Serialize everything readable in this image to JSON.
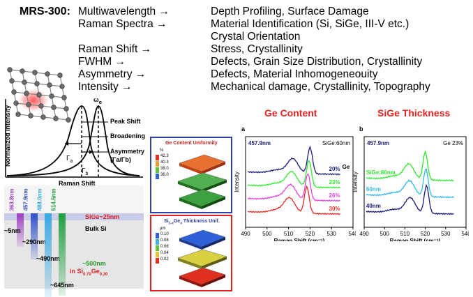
{
  "header": {
    "model": "MRS-300:",
    "rows": [
      {
        "label": "Multiwavelength →",
        "value": "Depth Profiling, Surface Damage"
      },
      {
        "label": "Raman Spectra →",
        "value": "Material Identification (Si, SiGe, III-V etc.)"
      },
      {
        "label": "",
        "value": "Crystal Orientation"
      },
      {
        "label": "Raman Shift →",
        "value": "Stress, Crystallinity"
      },
      {
        "label": "FWHM →",
        "value": "Defects, Grain Size Distribution, Crystallinity"
      },
      {
        "label": "Asymmetry →",
        "value": "Defects, Material Inhomogeneouity"
      },
      {
        "label": "Intensity →",
        "value": "Mechanical damage, Crystallinity, Topography"
      }
    ]
  },
  "peak_diagram": {
    "ylabel": "Normalized Intensity",
    "xlabel": "Raman Shift",
    "omega": "ω",
    "omega_sub": "o",
    "gamma_a": "Γ",
    "gamma_a_sub": "a",
    "gamma_b": "Γ",
    "gamma_b_sub": "b",
    "peak_shift": "Peak Shift",
    "broadening": "Broadening",
    "asymmetry": "Asymmetry",
    "asymmetry_ratio": "(Γa/Γb)"
  },
  "depth": {
    "wavelengths": [
      {
        "label": "363.8nm",
        "color": "#a040c0",
        "depth": "~5nm"
      },
      {
        "label": "457.9nm",
        "color": "#3050c8",
        "depth": "~290nm"
      },
      {
        "label": "488.0nm",
        "color": "#38a8e0",
        "depth": "~490nm"
      },
      {
        "label": "514.5nm",
        "color": "#20a040",
        "depth": "~645nm"
      }
    ],
    "sige_label": "SiGe~25nm",
    "bulk_label": "Bulk Si",
    "sige_depth_label": "~500nm",
    "sige_depth_sub": "in Si",
    "comp_a": "0.70",
    "ge": "Ge",
    "comp_b": "0.30"
  },
  "maps": {
    "top_title": "Ge Content Uniformity",
    "top_unit": "%",
    "top_scale": [
      "42.3",
      "40.3",
      "38.0",
      "36.0"
    ],
    "bottom_title_prefix": "Si",
    "bottom_title_sub1": "1-x",
    "bottom_title_ge": "Ge",
    "bottom_title_sub2": "x",
    "bottom_title_suffix": " Thickness Unif.",
    "bottom_unit": "μm",
    "bottom_scale": [
      "0.10",
      "0.08",
      "0.06",
      "0.04",
      "0.02"
    ]
  },
  "ge_content": {
    "title": "Ge Content",
    "panel": "a",
    "wavelength": "457.9nm",
    "sample": "SiGe:60nm",
    "legend_title": "Ge",
    "series": [
      {
        "name": "20%",
        "color": "#1a1a7a",
        "offset": 3
      },
      {
        "name": "23%",
        "color": "#2ee82e",
        "offset": 2
      },
      {
        "name": "26%",
        "color": "#e040e0",
        "offset": 1
      },
      {
        "name": "30%",
        "color": "#e82828",
        "offset": 0
      }
    ],
    "xlabel": "Raman Shift (cm⁻¹)",
    "ylabel": "Intensity",
    "xticks": [
      "490",
      "500",
      "510",
      "520",
      "530",
      "540"
    ]
  },
  "sige_thickness": {
    "title": "SiGe Thickness",
    "panel": "b",
    "wavelength": "457.9nm",
    "sample": "Ge 23%",
    "series": [
      {
        "name": "SiGe:80nm",
        "color": "#2ee82e",
        "offset": 2
      },
      {
        "name": "60nm",
        "color": "#30b8e8",
        "offset": 1
      },
      {
        "name": "40nm",
        "color": "#1a1a7a",
        "offset": 0
      }
    ],
    "xlabel": "Raman Shift (cm⁻¹)",
    "ylabel": "Intensity",
    "xticks": [
      "490",
      "500",
      "510",
      "520",
      "530",
      "540"
    ]
  }
}
